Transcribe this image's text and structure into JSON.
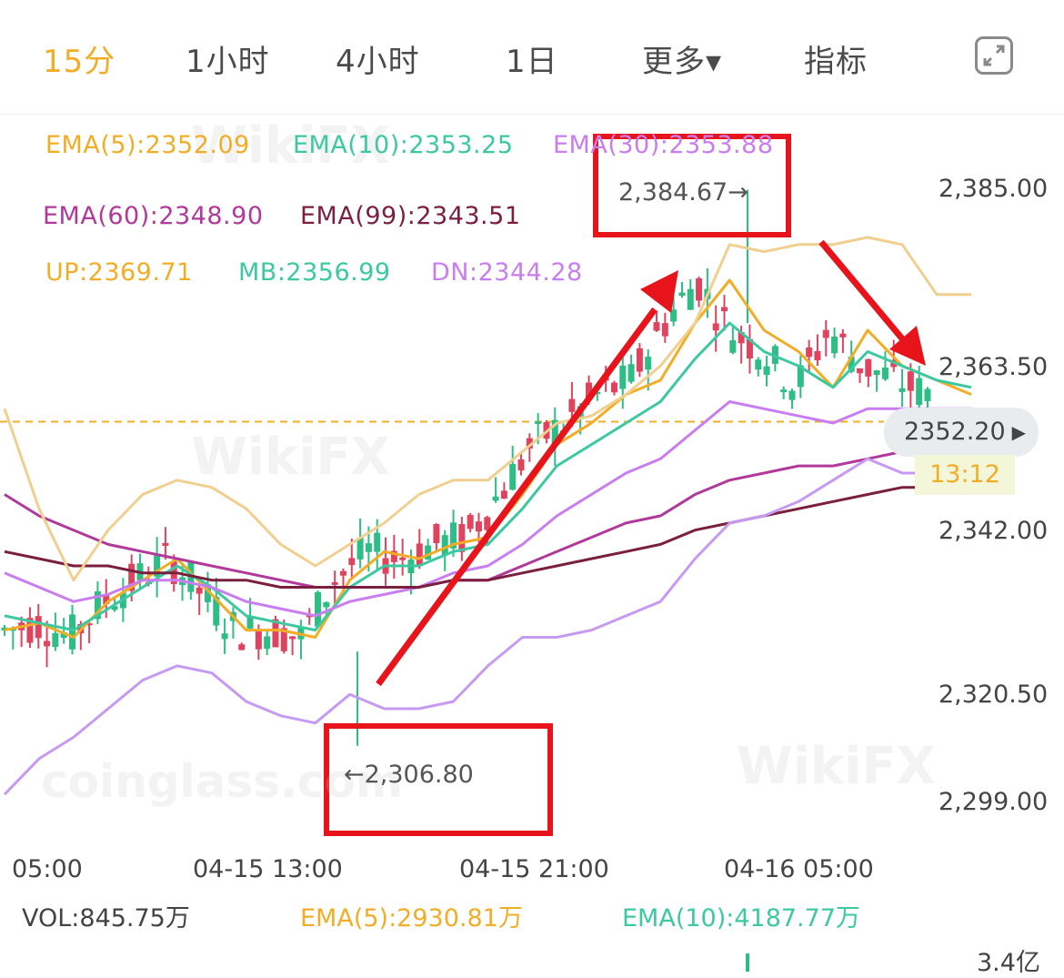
{
  "tabs": [
    {
      "label": "15分",
      "active": true
    },
    {
      "label": "1小时"
    },
    {
      "label": "4小时"
    },
    {
      "label": "1日"
    },
    {
      "label": "更多▾"
    },
    {
      "label": "指标"
    }
  ],
  "fullscreen_icon": "expand-icon",
  "legend": {
    "ema5": "EMA(5):2352.09",
    "ema10": "EMA(10):2353.25",
    "ema30": "EMA(30):2353.88",
    "ema60": "EMA(60):2348.90",
    "ema99": "EMA(99):2343.51",
    "up": "UP:2369.71",
    "mb": "MB:2356.99",
    "dn": "DN:2344.28"
  },
  "colors": {
    "ema5": "#f2ad27",
    "ema10": "#3cc8a1",
    "ema30": "#c97df0",
    "ema60": "#b0399a",
    "ema99": "#7a1f3d",
    "up_band": "#f0cf8f",
    "mb_band": "#5cd3bd",
    "dn_band": "#c79af2",
    "candle_up": "#2dbd85",
    "candle_down": "#e0435e",
    "annotation": "#e8141b",
    "accent": "#f2ad27"
  },
  "price_axis": [
    "2,385.00",
    "2,363.50",
    "2,342.00",
    "2,320.50",
    "2,299.00"
  ],
  "time_axis": [
    "05:00",
    "04-15 13:00",
    "04-15 21:00",
    "04-16 05:00"
  ],
  "current_price": "2352.20",
  "countdown": "13:12",
  "max_label": "2,384.67→",
  "min_label": "←2,306.80",
  "volume": {
    "vol": "VOL:845.75万",
    "ema5": "EMA(5):2930.81万",
    "ema10": "EMA(10):4187.77万",
    "scale": "3.4亿"
  },
  "watermarks": [
    "WikiFX",
    "WikiFX",
    "WikiFX",
    "coinglass.com"
  ],
  "chart_data": {
    "type": "line",
    "title": "",
    "ylim": [
      2299,
      2385
    ],
    "x_range": [
      "05:00",
      "04-16 05:00+"
    ],
    "series": [
      {
        "name": "EMA(5)",
        "values": [
          2323,
          2324,
          2322,
          2327,
          2330,
          2333,
          2328,
          2323,
          2323,
          2322,
          2330,
          2334,
          2333,
          2335,
          2336,
          2342,
          2349,
          2352,
          2356,
          2358,
          2366,
          2372,
          2365,
          2362,
          2357,
          2365,
          2360,
          2358,
          2356
        ]
      },
      {
        "name": "EMA(10)",
        "values": [
          2325,
          2324,
          2323,
          2326,
          2329,
          2332,
          2329,
          2325,
          2324,
          2323,
          2329,
          2332,
          2332,
          2334,
          2335,
          2340,
          2346,
          2349,
          2352,
          2355,
          2361,
          2366,
          2362,
          2360,
          2357,
          2362,
          2360,
          2358,
          2357
        ]
      },
      {
        "name": "EMA(30)",
        "values": [
          2331,
          2329,
          2327,
          2328,
          2330,
          2330,
          2329,
          2327,
          2326,
          2325,
          2327,
          2328,
          2329,
          2331,
          2332,
          2335,
          2339,
          2342,
          2345,
          2347,
          2351,
          2355,
          2354,
          2353,
          2352,
          2354,
          2354,
          2354,
          2354
        ]
      },
      {
        "name": "EMA(60)",
        "values": [
          2342,
          2339,
          2337,
          2335,
          2334,
          2333,
          2332,
          2331,
          2330,
          2329,
          2329,
          2329,
          2329,
          2330,
          2330,
          2332,
          2334,
          2336,
          2338,
          2339,
          2342,
          2344,
          2345,
          2346,
          2346,
          2347,
          2348,
          2348,
          2349
        ]
      },
      {
        "name": "EMA(99)",
        "values": [
          2334,
          2333,
          2332,
          2332,
          2331,
          2331,
          2330,
          2330,
          2329,
          2329,
          2329,
          2329,
          2329,
          2330,
          2330,
          2331,
          2332,
          2333,
          2334,
          2335,
          2337,
          2338,
          2339,
          2340,
          2341,
          2342,
          2343,
          2343,
          2344
        ]
      },
      {
        "name": "UP",
        "values": [
          2354,
          2340,
          2330,
          2337,
          2342,
          2344,
          2343,
          2340,
          2335,
          2332,
          2335,
          2338,
          2342,
          2344,
          2344,
          2348,
          2352,
          2353,
          2356,
          2360,
          2366,
          2377,
          2376,
          2377,
          2377,
          2378,
          2377,
          2370,
          2370
        ]
      },
      {
        "name": "DN",
        "values": [
          2300,
          2305,
          2308,
          2312,
          2316,
          2318,
          2317,
          2313,
          2311,
          2310,
          2314,
          2312,
          2312,
          2313,
          2318,
          2322,
          2322,
          2323,
          2325,
          2327,
          2333,
          2338,
          2339,
          2341,
          2344,
          2347,
          2345,
          2345,
          2346
        ]
      }
    ],
    "extremes": {
      "high": 2384.67,
      "low": 2306.8
    },
    "last_price": 2352.2
  }
}
